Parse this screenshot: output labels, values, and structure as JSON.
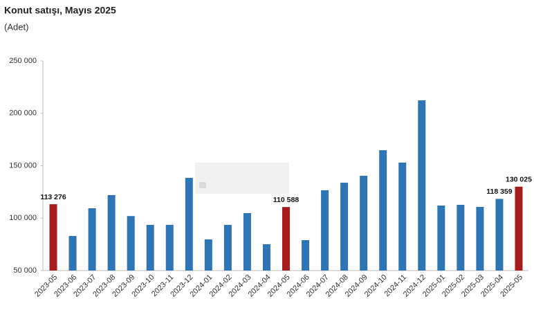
{
  "chart_data": {
    "type": "bar",
    "title": "Konut satışı, Mayıs 2025",
    "subtitle": "(Adet)",
    "categories": [
      "2023-05",
      "2023-06",
      "2023-07",
      "2023-08",
      "2023-09",
      "2023-10",
      "2023-11",
      "2023-12",
      "2024-01",
      "2024-02",
      "2024-03",
      "2024-04",
      "2024-05",
      "2024-06",
      "2024-07",
      "2024-08",
      "2024-09",
      "2024-10",
      "2024-11",
      "2024-12",
      "2025-01",
      "2025-02",
      "2025-03",
      "2025-04",
      "2025-05"
    ],
    "values": [
      113276,
      83000,
      109400,
      122000,
      102000,
      93600,
      93600,
      138400,
      79700,
      93600,
      104800,
      75100,
      110588,
      79000,
      126600,
      133800,
      140400,
      164800,
      153000,
      212400,
      112000,
      112700,
      110700,
      118359,
      130025
    ],
    "value_labels": [
      "113 276",
      null,
      null,
      null,
      null,
      null,
      null,
      null,
      null,
      null,
      null,
      null,
      "110 588",
      null,
      null,
      null,
      null,
      null,
      null,
      null,
      null,
      null,
      null,
      "118 359",
      "130 025"
    ],
    "colors": [
      "#a61c1c",
      "#2e75b6",
      "#2e75b6",
      "#2e75b6",
      "#2e75b6",
      "#2e75b6",
      "#2e75b6",
      "#2e75b6",
      "#2e75b6",
      "#2e75b6",
      "#2e75b6",
      "#2e75b6",
      "#a61c1c",
      "#2e75b6",
      "#2e75b6",
      "#2e75b6",
      "#2e75b6",
      "#2e75b6",
      "#2e75b6",
      "#2e75b6",
      "#2e75b6",
      "#2e75b6",
      "#2e75b6",
      "#2e75b6",
      "#a61c1c"
    ],
    "ylim": [
      50000,
      250000
    ],
    "yticks": [
      {
        "value": 50000,
        "label": "50 000"
      },
      {
        "value": 100000,
        "label": "100 000"
      },
      {
        "value": 150000,
        "label": "150 000"
      },
      {
        "value": 200000,
        "label": "200 000"
      },
      {
        "value": 250000,
        "label": "250 000"
      }
    ],
    "grid": false
  }
}
